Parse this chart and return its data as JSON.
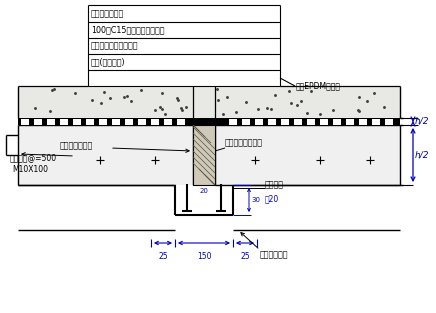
{
  "bg_color": "#ffffff",
  "line_color": "#000000",
  "blue_color": "#0000bb",
  "annotations": {
    "top_labels": [
      "素十分夯实垫层",
      "100厚C15细石混凝土保护层",
      "十布油聚氨酯防水涂料",
      "底板(顶板处理)"
    ],
    "label_epdm": "外贴EPDM止水带",
    "label_foam": "聚丙乙烯泡沫板",
    "label_center_waterstop": "中置式橡胶止水带",
    "label_rubber_plate": "橡胶垫板",
    "label_screw": "螺母螺栓@=500",
    "label_screw2": "M10X100",
    "label_thickness": "厚20",
    "label_drain": "入侵刚接水槽",
    "label_h2_top": "h/2",
    "label_h2_bot": "h/2",
    "dim_25_left": "25",
    "dim_150": "150",
    "dim_25_right": "25",
    "dim_20": "20",
    "dim_30": "30"
  },
  "figsize": [
    4.36,
    3.13
  ],
  "dpi": 100
}
